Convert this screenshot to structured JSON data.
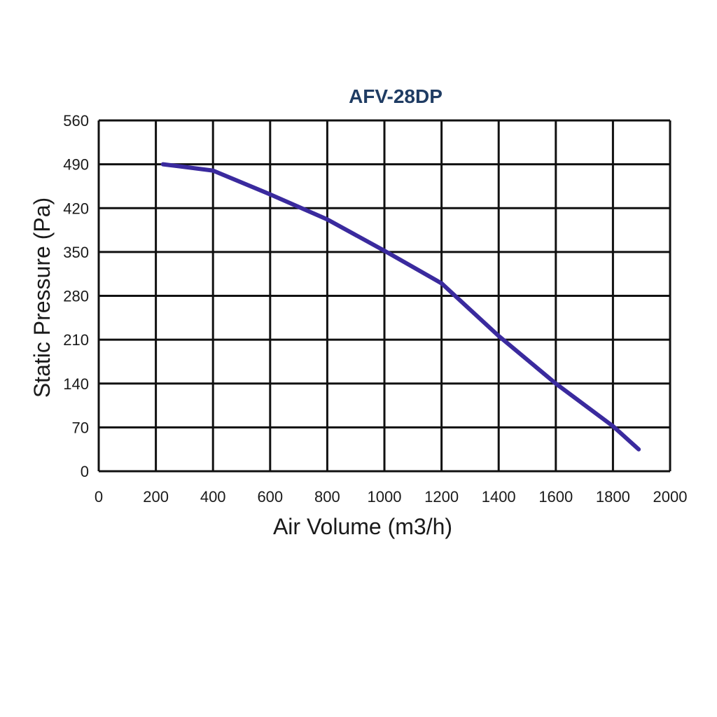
{
  "chart_data": {
    "type": "line",
    "title": "AFV-28DP",
    "xlabel": "Air Volume (m3/h)",
    "ylabel": "Static Pressure (Pa)",
    "xlim": [
      0,
      2000
    ],
    "ylim": [
      0,
      560
    ],
    "x_ticks": [
      0,
      200,
      400,
      600,
      800,
      1000,
      1200,
      1400,
      1600,
      1800,
      2000
    ],
    "y_ticks": [
      0,
      70,
      140,
      210,
      280,
      350,
      420,
      490,
      560
    ],
    "grid": true,
    "series": [
      {
        "color": "#3a2a9e",
        "points": [
          {
            "x": 225,
            "y": 490
          },
          {
            "x": 400,
            "y": 480
          },
          {
            "x": 600,
            "y": 442
          },
          {
            "x": 800,
            "y": 402
          },
          {
            "x": 1000,
            "y": 352
          },
          {
            "x": 1200,
            "y": 300
          },
          {
            "x": 1400,
            "y": 216
          },
          {
            "x": 1600,
            "y": 140
          },
          {
            "x": 1800,
            "y": 72
          },
          {
            "x": 1890,
            "y": 35
          }
        ]
      }
    ]
  },
  "colors": {
    "grid": "#111111",
    "line": "#3a2a9e",
    "title": "#1f3c63"
  }
}
